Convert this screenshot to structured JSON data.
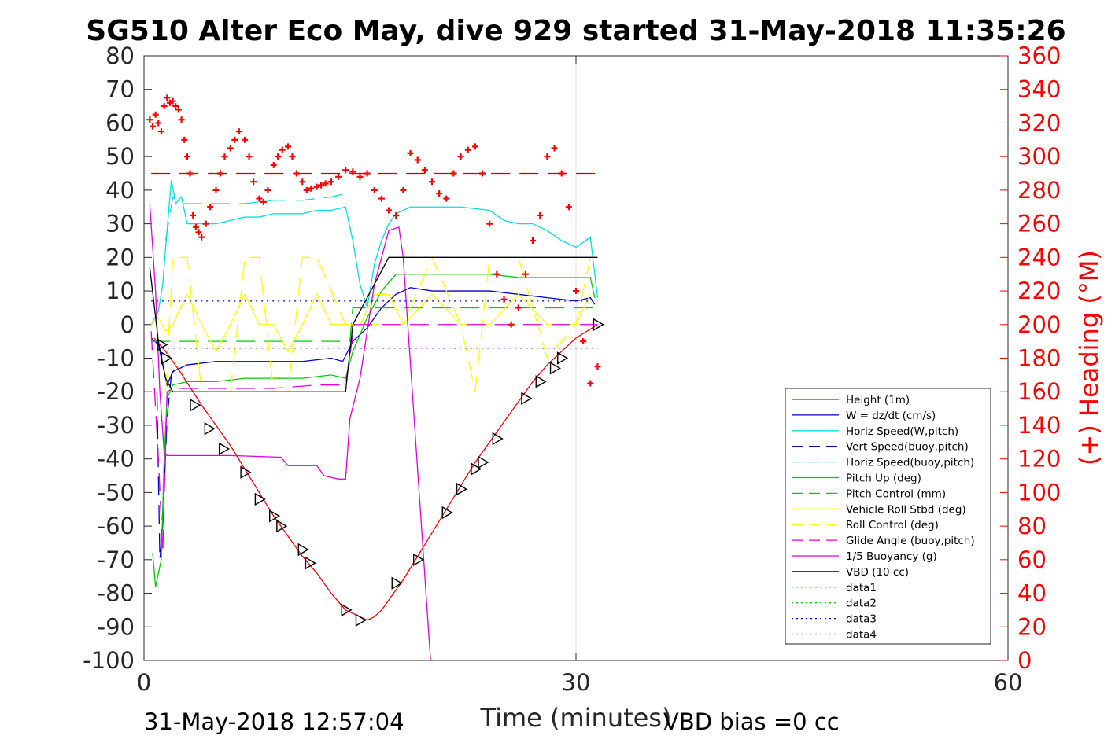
{
  "chart_data": {
    "type": "line",
    "title": "SG510 Alter Eco May, dive 929 started 31-May-2018 11:35:26",
    "xlabel": "Time (minutes)",
    "ylabel": "",
    "ylabel_right": "(+) Heading (°M)",
    "xlim": [
      0,
      60
    ],
    "ylim": [
      -100,
      80
    ],
    "ylim_right": [
      0,
      360
    ],
    "x_ticks": [
      0,
      30,
      60
    ],
    "y_ticks": [
      80,
      70,
      60,
      50,
      40,
      30,
      20,
      10,
      0,
      -10,
      -20,
      -30,
      -40,
      -50,
      -60,
      -70,
      -80,
      -90,
      -100
    ],
    "y_ticks_right": [
      360,
      340,
      320,
      300,
      280,
      260,
      240,
      220,
      200,
      180,
      160,
      140,
      120,
      100,
      80,
      60,
      40,
      20,
      0
    ],
    "grid": "x only",
    "legend_position": "lower-right",
    "footer_left": "31-May-2018 12:57:04",
    "footer_right": "VBD bias =0 cc",
    "colors": {
      "red": "#ff0000",
      "blue": "#0000cc",
      "cyan": "#00e0e0",
      "green": "#00cc00",
      "yellow": "#ffff00",
      "magenta": "#e000e0",
      "black": "#000000",
      "darkred": "#cc0000"
    },
    "series": [
      {
        "name": "Height (1m)",
        "color": "#ff0000",
        "style": "solid",
        "x": [
          0.7,
          1.5,
          2.5,
          4.0,
          5.0,
          6.0,
          7.0,
          8.0,
          9.0,
          10.0,
          11.0,
          12.0,
          13.0,
          14.0,
          14.5,
          15.0,
          15.5,
          16.0,
          16.5,
          17.0,
          18.0,
          19.0,
          20.0,
          21.0,
          22.0,
          23.0,
          24.0,
          25.0,
          26.0,
          27.0,
          28.0,
          29.0,
          30.0,
          31.5
        ],
        "y": [
          -4,
          -8,
          -14,
          -24,
          -30,
          -36,
          -43,
          -50,
          -57,
          -63,
          -69,
          -74,
          -80,
          -85,
          -86,
          -87,
          -88,
          -87,
          -85,
          -82,
          -76,
          -69,
          -62,
          -55,
          -48,
          -41,
          -35,
          -29,
          -23,
          -17,
          -12,
          -8,
          -4,
          0
        ]
      },
      {
        "name": "W = dz/dt (cm/s)",
        "color": "#0000cc",
        "style": "solid",
        "x": [
          0.5,
          1.0,
          1.3,
          1.6,
          2.0,
          3.0,
          5.0,
          7.0,
          9.0,
          11.0,
          13.0,
          13.8,
          14.5,
          15.5,
          16.5,
          17.5,
          18.5,
          20.0,
          22.0,
          24.0,
          26.0,
          28.0,
          30.0,
          31.0,
          31.3
        ],
        "y": [
          -4,
          -6,
          -12,
          -18,
          -14,
          -12,
          -11,
          -11,
          -11,
          -11,
          -10,
          -11,
          -5,
          -1,
          5,
          9,
          11,
          10,
          10,
          10,
          9,
          8,
          7,
          8,
          6
        ]
      },
      {
        "name": "Horiz Speed(W,pitch)",
        "color": "#00e0e0",
        "style": "solid",
        "x": [
          0.5,
          1.0,
          1.3,
          1.6,
          1.9,
          2.2,
          2.6,
          3.0,
          4.0,
          5.0,
          6.0,
          7.0,
          8.0,
          9.0,
          10.0,
          11.0,
          12.0,
          13.0,
          14.0,
          14.5,
          15.0,
          15.5,
          16.0,
          16.5,
          17.0,
          17.5,
          18.5,
          20.0,
          22.0,
          24.0,
          25.0,
          26.0,
          27.0,
          28.0,
          29.0,
          30.0,
          31.0,
          31.5
        ],
        "y": [
          0,
          4,
          12,
          28,
          43,
          36,
          38,
          30,
          30,
          30,
          31,
          32,
          32,
          33,
          33,
          33,
          34,
          34,
          35,
          25,
          12,
          5,
          18,
          25,
          30,
          33,
          35,
          35,
          35,
          34,
          31,
          30,
          30,
          28,
          25,
          23,
          26,
          8
        ]
      },
      {
        "name": "Vert Speed(buoy,pitch)",
        "color": "#0000cc",
        "style": "dashed",
        "x": [
          0.9,
          1.1,
          1.3,
          1.6,
          1.9,
          2.3
        ],
        "y": [
          -20,
          -70,
          -60,
          -28,
          -15,
          -12
        ]
      },
      {
        "name": "Horiz Speed(buoy,pitch)",
        "color": "#00e0e0",
        "style": "dashed",
        "x": [
          1.5,
          2.0,
          2.5,
          3.0,
          5.0,
          7.0,
          9.0,
          11.0,
          13.0,
          14.0
        ],
        "y": [
          25,
          38,
          36,
          36,
          36,
          36,
          37,
          37,
          38,
          39
        ]
      },
      {
        "name": "Pitch Up (deg)",
        "color": "#00cc00",
        "style": "solid",
        "x": [
          0.6,
          0.8,
          1.0,
          1.2,
          1.4,
          1.6,
          2.0,
          3.0,
          5.0,
          7.0,
          9.0,
          11.0,
          13.0,
          14.0,
          14.5,
          15.5,
          16.5,
          17.5,
          20.0,
          22.0,
          24.0,
          26.0,
          28.0,
          30.0,
          31.0,
          31.3
        ],
        "y": [
          -68,
          -78,
          -74,
          -70,
          -40,
          -22,
          -18,
          -17,
          -17,
          -16,
          -16,
          -16,
          -15,
          -16,
          -8,
          2,
          10,
          15,
          15,
          15,
          15,
          14,
          14,
          14,
          14,
          8
        ]
      },
      {
        "name": "Pitch Control (mm)",
        "color": "#00cc00",
        "style": "dashed",
        "x": [
          0.5,
          14.3,
          14.5,
          31.4
        ],
        "y": [
          -5,
          -5,
          5,
          5
        ]
      },
      {
        "name": "Vehicle Roll Stbd (deg)",
        "color": "#ffff00",
        "style": "solid",
        "x": [
          0.5,
          1.0,
          1.5,
          2.0,
          3.0,
          4.0,
          5.0,
          6.0,
          7.0,
          8.0,
          9.0,
          10.0,
          11.0,
          12.0,
          13.0,
          14.0,
          15.0,
          16.0,
          17.0,
          18.0,
          20.0,
          22.0,
          24.0,
          26.0,
          28.0,
          30.0,
          31.0
        ],
        "y": [
          0,
          2,
          -2,
          0,
          9,
          0,
          -8,
          0,
          9,
          0,
          0,
          -8,
          0,
          9,
          0,
          0,
          0,
          9,
          9,
          0,
          9,
          0,
          0,
          9,
          0,
          0,
          9
        ]
      },
      {
        "name": "Roll Control (deg)",
        "color": "#ffff00",
        "style": "dashed",
        "x": [
          1.5,
          2.0,
          3.0,
          4.0,
          6.0,
          7.0,
          8.0,
          9.0,
          10.0,
          11.0,
          12.0,
          14.0,
          18.0,
          20.0,
          22.0,
          23.0,
          24.0,
          26.0,
          28.0,
          30.0,
          31.0
        ],
        "y": [
          -20,
          20,
          20,
          -20,
          -20,
          20,
          20,
          -20,
          -20,
          20,
          20,
          0,
          0,
          20,
          0,
          -20,
          20,
          20,
          -10,
          0,
          20
        ]
      },
      {
        "name": "Glide Angle (buoy,pitch)",
        "color": "#e000e0",
        "style": "dashed",
        "x": [
          0.5,
          1.0,
          1.3,
          1.6,
          2.0,
          3.0,
          6.0,
          9.0,
          12.0,
          14.0,
          14.6,
          31.5
        ],
        "y": [
          -2,
          -40,
          -68,
          -20,
          -19,
          -19,
          -19,
          -19,
          -18,
          -18,
          0,
          0
        ]
      },
      {
        "name": "1/5 Buoyancy (g)",
        "color": "#e000e0",
        "style": "solid",
        "x": [
          0.4,
          0.8,
          1.1,
          1.4,
          1.6,
          3.0,
          6.0,
          9.5,
          10.0,
          12.0,
          12.5,
          13.5,
          14.0,
          14.3,
          15.0,
          16.0,
          17.0,
          17.7,
          18.0,
          19.9
        ],
        "y": [
          36,
          10,
          -20,
          -38,
          -39,
          -39,
          -39,
          -39.5,
          -42,
          -42,
          -45,
          -46,
          -46,
          -28,
          -16,
          12,
          28,
          29,
          20,
          -100
        ]
      },
      {
        "name": "VBD (10 cc)",
        "color": "#000000",
        "style": "solid",
        "x": [
          0.4,
          1.0,
          1.5,
          2.0,
          14.0,
          14.5,
          17.0,
          31.5
        ],
        "y": [
          17,
          -5,
          -16,
          -20,
          -20,
          0,
          20,
          20
        ]
      },
      {
        "name": "data1",
        "color": "#00cc00",
        "style": "dotted",
        "x": [],
        "y": []
      },
      {
        "name": "data2",
        "color": "#00cc00",
        "style": "dotted",
        "x": [],
        "y": []
      },
      {
        "name": "data3",
        "color": "#0000cc",
        "style": "dotted",
        "x": [
          0.5,
          31.5
        ],
        "y": [
          7,
          7
        ]
      },
      {
        "name": "data4",
        "color": "#0000cc",
        "style": "dotted",
        "x": [
          0.5,
          31.5
        ],
        "y": [
          -7,
          -7
        ]
      }
    ],
    "heading_target": {
      "color": "#cc0000",
      "style": "dashed",
      "axis": "right",
      "x": [
        0.5,
        31.5
      ],
      "y": [
        290,
        290
      ]
    },
    "heading_points": {
      "color": "#ff0000",
      "axis": "right",
      "x": [
        0.4,
        0.6,
        0.8,
        1.0,
        1.2,
        1.4,
        1.6,
        1.8,
        2.0,
        2.2,
        2.4,
        2.6,
        2.8,
        3.0,
        3.2,
        3.4,
        3.6,
        3.8,
        4.0,
        4.3,
        4.6,
        5.0,
        5.3,
        5.6,
        6.0,
        6.3,
        6.6,
        7.0,
        7.3,
        7.6,
        8.0,
        8.3,
        8.6,
        9.0,
        9.3,
        9.6,
        10.0,
        10.3,
        10.6,
        11.0,
        11.3,
        11.6,
        12.0,
        12.3,
        12.6,
        13.0,
        13.5,
        14.0,
        14.5,
        15.0,
        15.5,
        16.0,
        16.5,
        17.0,
        17.5,
        18.0,
        18.5,
        19.0,
        19.5,
        20.0,
        20.5,
        21.0,
        21.5,
        22.0,
        22.5,
        23.0,
        23.5,
        24.0,
        24.5,
        25.0,
        25.5,
        26.0,
        26.5,
        27.0,
        27.5,
        28.0,
        28.5,
        29.0,
        29.5,
        30.0,
        30.5,
        31.0,
        31.5
      ],
      "y": [
        322,
        318,
        325,
        320,
        315,
        330,
        335,
        332,
        333,
        330,
        328,
        322,
        310,
        300,
        290,
        265,
        258,
        255,
        252,
        260,
        270,
        280,
        290,
        300,
        305,
        310,
        315,
        310,
        300,
        285,
        275,
        273,
        280,
        295,
        300,
        304,
        306,
        300,
        290,
        285,
        280,
        281,
        282,
        283,
        284,
        285,
        288,
        292,
        291,
        288,
        290,
        280,
        275,
        268,
        265,
        280,
        302,
        298,
        292,
        285,
        278,
        275,
        290,
        300,
        304,
        306,
        290,
        260,
        230,
        215,
        200,
        210,
        230,
        250,
        265,
        300,
        305,
        290,
        270,
        220,
        190,
        165,
        175
      ]
    },
    "position_markers": {
      "color": "#000000",
      "shape": "triangle",
      "x": [
        1.2,
        1.5,
        3.5,
        4.5,
        5.5,
        7.0,
        8.0,
        9.0,
        9.5,
        11.0,
        11.5,
        14.0,
        15.0,
        17.5,
        19.0,
        21.0,
        22.0,
        23.0,
        23.5,
        24.5,
        26.5,
        27.5,
        28.5,
        29.0,
        31.5
      ],
      "y": [
        -6,
        -10,
        -24,
        -31,
        -37,
        -44,
        -52,
        -57,
        -60,
        -67,
        -71,
        -85,
        -88,
        -77,
        -70,
        -56,
        -49,
        -43,
        -41,
        -34,
        -22,
        -17,
        -13,
        -10,
        0
      ]
    }
  }
}
